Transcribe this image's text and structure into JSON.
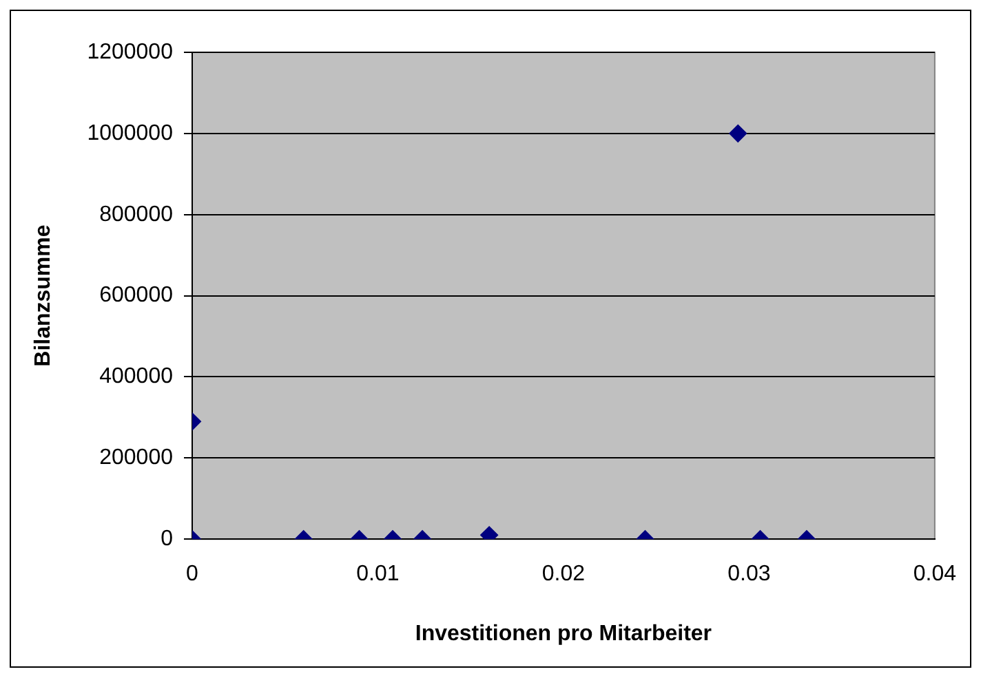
{
  "chart_data": {
    "type": "scatter",
    "xlabel": "Investitionen pro Mitarbeiter",
    "ylabel": "Bilanzsumme",
    "x": [
      0,
      0,
      0.006,
      0.009,
      0.0108,
      0.0124,
      0.016,
      0.0244,
      0.0294,
      0.0306,
      0.0331
    ],
    "values": [
      290000,
      0,
      0,
      0,
      0,
      0,
      10000,
      0,
      1000000,
      0,
      0
    ],
    "color": "#000080",
    "marker": "diamond",
    "grid": "y",
    "xlim": [
      0,
      0.04
    ],
    "xticks": [
      0,
      0.01,
      0.02,
      0.03,
      0.04
    ],
    "ylim": [
      0,
      1200000
    ],
    "yticks": [
      0,
      200000,
      400000,
      600000,
      800000,
      1000000,
      1200000
    ]
  }
}
